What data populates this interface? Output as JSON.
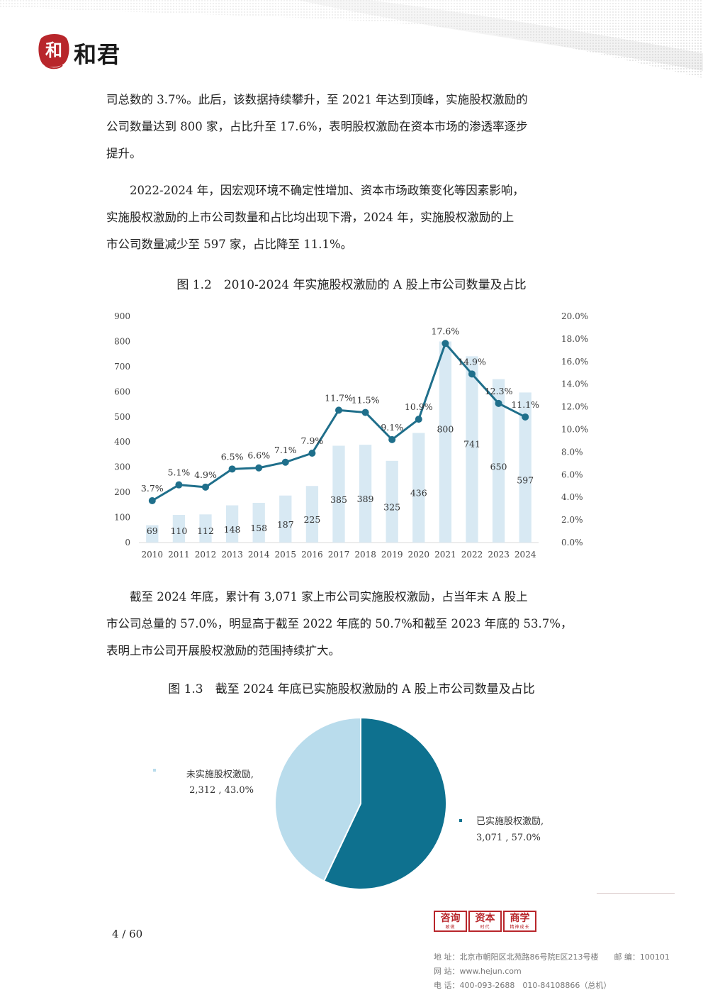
{
  "header": {
    "logo_seal_char": "和",
    "logo_text": "和君"
  },
  "paragraphs": [
    [
      "司总数的 3.7%。此后，该数据持续攀升，至 2021 年达到顶峰，实施股权激励的",
      "公司数量达到 800 家，占比升至 17.6%，表明股权激励在资本市场的渗透率逐步",
      "提升。"
    ],
    [
      "　　2022-2024 年，因宏观环境不确定性增加、资本市场政策变化等因素影响，",
      "实施股权激励的上市公司数量和占比均出现下滑，2024 年，实施股权激励的上",
      "市公司数量减少至 597 家，占比降至 11.1%。"
    ],
    [
      "　　截至 2024 年底，累计有 3,071 家上市公司实施股权激励，占当年末 A 股上",
      "市公司总量的 57.0%，明显高于截至 2022 年底的 50.7%和截至 2023 年底的 53.7%，",
      "表明上市公司开展股权激励的范围持续扩大。"
    ]
  ],
  "figure1": {
    "caption": "图  1.2　2010-2024 年实施股权激励的 A 股上市公司数量及占比"
  },
  "figure2": {
    "caption": "图  1.3　截至 2024 年底已实施股权激励的 A 股上市公司数量及占比"
  },
  "chart_data": [
    {
      "type": "bar",
      "categories": [
        "2010",
        "2011",
        "2012",
        "2013",
        "2014",
        "2015",
        "2016",
        "2017",
        "2018",
        "2019",
        "2020",
        "2021",
        "2022",
        "2023",
        "2024"
      ],
      "series": [
        {
          "values": [
            69,
            110,
            112,
            148,
            158,
            187,
            225,
            385,
            389,
            325,
            436,
            800,
            741,
            650,
            597
          ],
          "color": "#d8e9f3",
          "axis": "left"
        },
        {
          "type": "line",
          "values": [
            3.7,
            5.1,
            4.9,
            6.5,
            6.6,
            7.1,
            7.9,
            11.7,
            11.5,
            9.1,
            10.9,
            17.6,
            14.9,
            12.3,
            11.1
          ],
          "color": "#1f6f8b",
          "axis": "right"
        }
      ],
      "bar_labels": [
        "69",
        "110",
        "112",
        "148",
        "158",
        "187",
        "225",
        "385",
        "389",
        "325",
        "436",
        "800",
        "741",
        "650",
        "597"
      ],
      "line_labels": [
        "3.7%",
        "5.1%",
        "4.9%",
        "6.5%",
        "6.6%",
        "7.1%",
        "7.9%",
        "11.7%",
        "11.5%",
        "9.1%",
        "10.9%",
        "17.6%",
        "14.9%",
        "12.3%",
        "11.1%"
      ],
      "y_left": {
        "ylim": [
          0,
          900
        ],
        "ticks": [
          "0",
          "100",
          "200",
          "300",
          "400",
          "500",
          "600",
          "700",
          "800",
          "900"
        ]
      },
      "y_right": {
        "ylim": [
          0,
          20
        ],
        "ticks": [
          "0.0%",
          "2.0%",
          "4.0%",
          "6.0%",
          "8.0%",
          "10.0%",
          "12.0%",
          "14.0%",
          "16.0%",
          "18.0%",
          "20.0%"
        ]
      },
      "grid": false,
      "legend": "none"
    },
    {
      "type": "pie",
      "slices": [
        {
          "label": "已实施股权激励,",
          "value": 3071,
          "value_text": "3,071",
          "percent": 57.0,
          "percent_text": "57.0%",
          "color": "#0e718f"
        },
        {
          "label": "未实施股权激励,",
          "value": 2312,
          "value_text": "2,312",
          "percent": 43.0,
          "percent_text": "43.0%",
          "color": "#b9dcec"
        }
      ],
      "label_sep": " ,  "
    }
  ],
  "footer": {
    "page_number": "4 / 60",
    "stamps": [
      {
        "main": "咨询",
        "sub": "敢做"
      },
      {
        "main": "资本",
        "sub": "时代"
      },
      {
        "main": "商学",
        "sub": "精神成长"
      }
    ],
    "address": "地 址：北京市朝阳区北苑路86号院E区213号楼　　邮 编：100101",
    "website": "网 站：www.hejun.com",
    "phone": "电 话：400-093-2688　010-84108866（总机）"
  }
}
